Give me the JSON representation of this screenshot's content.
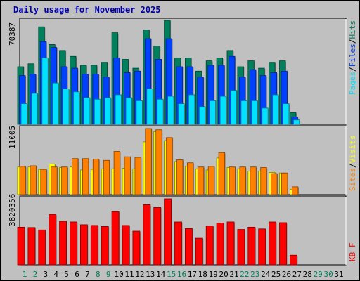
{
  "title": "Daily usage for November 2025",
  "colors": {
    "hits": "#00805c",
    "files": "#0040ff",
    "pages": "#00e0ff",
    "visits": "#ffff00",
    "sites": "#ff8000",
    "kbytes": "#ff0000",
    "weekday_label": "#000000",
    "weekend_label": "#00805c"
  },
  "chart_data": [
    {
      "type": "bar",
      "panel": "hits_files_pages",
      "scale_label": "70387",
      "ylim": [
        0,
        70387
      ],
      "legend": [
        "Pages",
        "/",
        "Files",
        "/",
        "Hits"
      ],
      "categories": [
        "1",
        "2",
        "3",
        "4",
        "5",
        "6",
        "7",
        "8",
        "9",
        "10",
        "11",
        "12",
        "13",
        "14",
        "15",
        "16",
        "17",
        "18",
        "19",
        "20",
        "21",
        "22",
        "23",
        "24",
        "25",
        "26",
        "27",
        "28",
        "29",
        "30",
        "31"
      ],
      "series": [
        {
          "name": "Hits",
          "values": [
            39000,
            41000,
            66000,
            54000,
            50000,
            46000,
            40000,
            40000,
            42000,
            62000,
            44000,
            38000,
            64000,
            53000,
            70387,
            45000,
            45000,
            36000,
            43000,
            45000,
            50000,
            39000,
            43000,
            38000,
            42000,
            43000,
            8000,
            0,
            0,
            0,
            0
          ]
        },
        {
          "name": "Files",
          "values": [
            33000,
            34000,
            56000,
            52000,
            39000,
            38000,
            34000,
            34000,
            32000,
            45000,
            35000,
            36000,
            58000,
            44000,
            58000,
            39000,
            39000,
            32000,
            40000,
            40000,
            46000,
            32000,
            37000,
            33000,
            35000,
            36000,
            5000,
            0,
            0,
            0,
            0
          ]
        },
        {
          "name": "Pages",
          "values": [
            14000,
            21000,
            45000,
            28000,
            24000,
            22000,
            18000,
            17000,
            18000,
            20000,
            18000,
            16000,
            24000,
            17000,
            19000,
            14000,
            20000,
            12000,
            16000,
            19000,
            23000,
            16000,
            16000,
            11000,
            20000,
            14000,
            3000,
            0,
            0,
            0,
            0
          ]
        }
      ]
    },
    {
      "type": "bar",
      "panel": "visits_sites",
      "scale_label": "11005",
      "ylim": [
        0,
        11005
      ],
      "legend": [
        "Sites",
        "/",
        "Visits"
      ],
      "categories": [
        "1",
        "2",
        "3",
        "4",
        "5",
        "6",
        "7",
        "8",
        "9",
        "10",
        "11",
        "12",
        "13",
        "14",
        "15",
        "16",
        "17",
        "18",
        "19",
        "20",
        "21",
        "22",
        "23",
        "24",
        "25",
        "26",
        "27",
        "28",
        "29",
        "30",
        "31"
      ],
      "series": [
        {
          "name": "Visits",
          "values": [
            4600,
            4600,
            4200,
            5100,
            4500,
            4600,
            4100,
            4200,
            4300,
            4300,
            4400,
            4300,
            8800,
            10500,
            9000,
            5500,
            4700,
            4300,
            4100,
            6100,
            4500,
            4300,
            3900,
            3900,
            3700,
            3600,
            900,
            0,
            0,
            0,
            0
          ]
        },
        {
          "name": "Sites",
          "values": [
            4700,
            4800,
            4200,
            4600,
            4600,
            6000,
            6000,
            5900,
            5700,
            7200,
            6300,
            6200,
            11005,
            10800,
            9500,
            5800,
            5300,
            4600,
            4700,
            7000,
            4600,
            4600,
            4600,
            4500,
            3500,
            3600,
            1300,
            0,
            0,
            0,
            0
          ]
        }
      ]
    },
    {
      "type": "bar",
      "panel": "kbytes",
      "scale_label": "3820356",
      "ylim": [
        0,
        3820356
      ],
      "legend": [
        "KB F"
      ],
      "categories": [
        "1",
        "2",
        "3",
        "4",
        "5",
        "6",
        "7",
        "8",
        "9",
        "10",
        "11",
        "12",
        "13",
        "14",
        "15",
        "16",
        "17",
        "18",
        "19",
        "20",
        "21",
        "22",
        "23",
        "24",
        "25",
        "26",
        "27",
        "28",
        "29",
        "30",
        "31"
      ],
      "series": [
        {
          "name": "KB F",
          "values": [
            2180000,
            2160000,
            2020000,
            2920000,
            2520000,
            2480000,
            2320000,
            2280000,
            2220000,
            3080000,
            2280000,
            1950000,
            3480000,
            3320000,
            3820356,
            2480000,
            2100000,
            1540000,
            2250000,
            2420000,
            2480000,
            2050000,
            2180000,
            2080000,
            2480000,
            2440000,
            560000,
            0,
            0,
            0,
            0
          ]
        }
      ]
    }
  ]
}
